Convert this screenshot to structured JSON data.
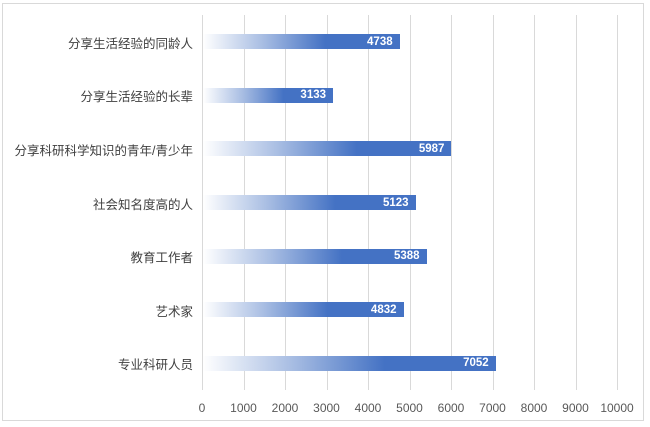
{
  "chart_data": {
    "type": "bar",
    "orientation": "horizontal",
    "title": "",
    "categories": [
      "分享生活经验的同龄人",
      "分享生活经验的长辈",
      "分享科研科学知识的青年/青少年",
      "社会知名度高的人",
      "教育工作者",
      "艺术家",
      "专业科研人员"
    ],
    "values": [
      4738,
      3133,
      5987,
      5123,
      5388,
      4832,
      7052
    ],
    "x_ticks": [
      0,
      1000,
      2000,
      3000,
      4000,
      5000,
      6000,
      7000,
      8000,
      9000,
      10000
    ],
    "xlim": [
      0,
      10000
    ],
    "grid": "vertical",
    "legend": "none",
    "colors": {
      "bar_solid": "#4472c4",
      "bar_gradient_light": "#ffffff",
      "value_label": "#ffffff",
      "category_label": "#404040",
      "tick_label": "#595959",
      "gridline": "#d9d9d9",
      "chart_border": "#d9d9d9"
    }
  }
}
